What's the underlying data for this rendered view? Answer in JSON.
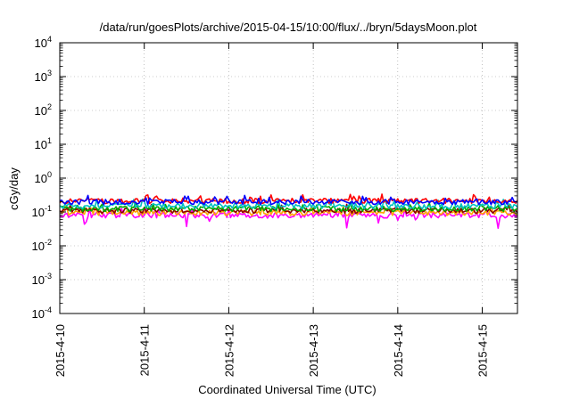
{
  "chart_data": {
    "type": "line",
    "title": "/data/run/goesPlots/archive/2015-04-15/10:00/flux/../bryn/5daysMoon.plot",
    "xlabel": "Coordinated Universal Time (UTC)",
    "ylabel": "cGy/day",
    "yscale": "log",
    "ylim": [
      0.0001,
      10000
    ],
    "xlim": [
      "2015-04-10 00:00",
      "2015-04-15 10:00"
    ],
    "grid": true,
    "y_ticks": [
      {
        "value": 0.0001,
        "base": "10",
        "exp": "-4"
      },
      {
        "value": 0.001,
        "base": "10",
        "exp": "-3"
      },
      {
        "value": 0.01,
        "base": "10",
        "exp": "-2"
      },
      {
        "value": 0.1,
        "base": "10",
        "exp": "-1"
      },
      {
        "value": 1,
        "base": "10",
        "exp": "0"
      },
      {
        "value": 10,
        "base": "10",
        "exp": "1"
      },
      {
        "value": 100,
        "base": "10",
        "exp": "2"
      },
      {
        "value": 1000,
        "base": "10",
        "exp": "3"
      },
      {
        "value": 10000,
        "base": "10",
        "exp": "4"
      }
    ],
    "x_ticks": [
      "2015-4-10",
      "2015-4-11",
      "2015-4-12",
      "2015-4-13",
      "2015-4-14",
      "2015-4-15"
    ],
    "series": [
      {
        "color": "#ff00ff",
        "level": 0.08,
        "low_spikes": true
      },
      {
        "color": "#ffa500",
        "level": 0.095,
        "low_spikes": false
      },
      {
        "color": "#8b0000",
        "level": 0.11,
        "low_spikes": false
      },
      {
        "color": "#00aa00",
        "level": 0.125,
        "low_spikes": false
      },
      {
        "color": "#00c0c0",
        "level": 0.15,
        "low_spikes": false
      },
      {
        "color": "#ff0000",
        "level": 0.215,
        "low_spikes": false
      },
      {
        "color": "#0000ff",
        "level": 0.2,
        "low_spikes": false
      }
    ]
  }
}
